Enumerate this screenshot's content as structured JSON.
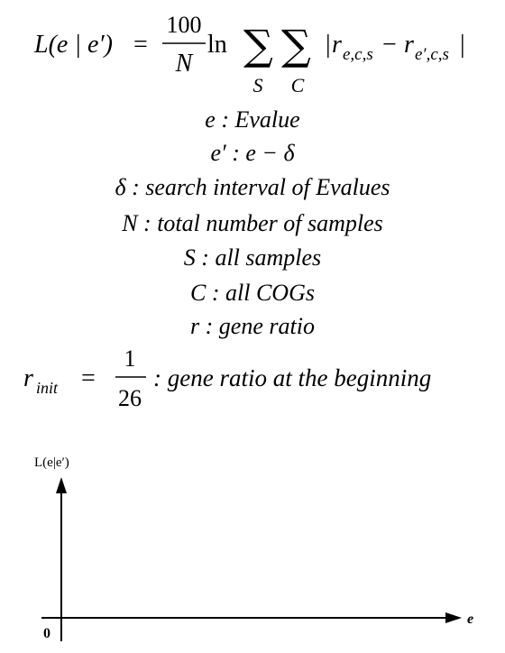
{
  "equation": {
    "lhs": "L(e | e′)",
    "equals": "=",
    "frac_num": "100",
    "frac_den": "N",
    "ln": "ln",
    "sum1_sub": "S",
    "sum2_sub": "C",
    "abs_open": "|",
    "r1": "r",
    "r1_sub": "e,c,s",
    "minus": "−",
    "r2": "r",
    "r2_sub": "e′,c,s",
    "abs_close": "|"
  },
  "definitions": [
    "e : Evalue",
    "e′ : e − δ",
    "δ : search interval of  Evalues",
    "N : total number of  samples",
    "S : all samples",
    "C : all COGs",
    "r : gene ratio"
  ],
  "r_init": {
    "lhs": "r",
    "lhs_sub": "init",
    "equals": "=",
    "frac_num": "1",
    "frac_den": "26",
    "desc": ": gene ratio at the beginning"
  },
  "axes": {
    "y_label": "L(e|e′)",
    "x_label": "e",
    "origin_label": "0"
  }
}
